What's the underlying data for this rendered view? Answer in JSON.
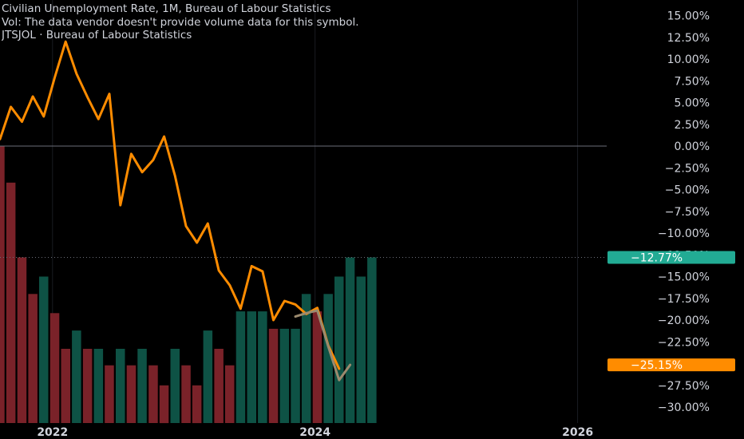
{
  "legend": {
    "line1": "Civilian Unemployment Rate, 1M, Bureau of Labour Statistics",
    "line2": "Vol: The data vendor doesn't provide volume data for this symbol.",
    "line3": "JTSJOL · Bureau of Labour Statistics"
  },
  "badges": {
    "volume_last": "−12.77%",
    "line_last": "−25.15%"
  },
  "colors": {
    "background": "#000000",
    "line": "#ff8c00",
    "line_faded": "#9b8a6e",
    "bar_up": "#0e5245",
    "bar_down": "#7a2229",
    "badge_volume": "#22ab94",
    "badge_line": "#ff8c00",
    "text": "#d1d4dc"
  },
  "chart_data": {
    "type": "line",
    "ylim": [
      -31,
      16
    ],
    "y_tick_labels": [
      "15.00%",
      "12.50%",
      "10.00%",
      "7.50%",
      "5.00%",
      "2.50%",
      "0.00%",
      "−2.50%",
      "−5.00%",
      "−7.50%",
      "−10.00%",
      "−12.50%",
      "−15.00%",
      "−17.50%",
      "−20.00%",
      "−22.50%",
      "−25.00%",
      "−27.50%",
      "−30.00%"
    ],
    "y_tick_values": [
      15,
      12.5,
      10,
      7.5,
      5,
      2.5,
      0,
      -2.5,
      -5,
      -7.5,
      -10,
      -12.5,
      -15,
      -17.5,
      -20,
      -22.5,
      -25,
      -27.5,
      -30
    ],
    "x_tick_labels": [
      "2022",
      "2024",
      "2026"
    ],
    "x_tick_values": [
      2022.0,
      2024.0,
      2026.0
    ],
    "xlim": [
      2021.6,
      2026.1
    ],
    "series": [
      {
        "kind": "line",
        "x": [
          2021.6,
          2021.683,
          2021.767,
          2021.85,
          2021.933,
          2022.017,
          2022.1,
          2022.183,
          2022.267,
          2022.35,
          2022.433,
          2022.517,
          2022.6,
          2022.683,
          2022.767,
          2022.85,
          2022.933,
          2023.017,
          2023.1,
          2023.183,
          2023.267,
          2023.35,
          2023.433,
          2023.517,
          2023.6,
          2023.683,
          2023.767,
          2023.85,
          2023.933,
          2024.017,
          2024.1,
          2024.183
        ],
        "values": [
          0.8,
          4.5,
          2.8,
          5.7,
          3.4,
          7.9,
          12.0,
          8.3,
          5.6,
          3.1,
          6.0,
          -6.8,
          -0.9,
          -3.0,
          -1.6,
          1.1,
          -3.4,
          -9.2,
          -11.1,
          -8.9,
          -14.3,
          -16.0,
          -18.7,
          -13.8,
          -14.4,
          -20.0,
          -17.8,
          -18.2,
          -19.3,
          -18.6,
          -22.9,
          -25.6
        ]
      },
      {
        "kind": "line_faded",
        "x": [
          2023.85,
          2023.933,
          2024.017
        ],
        "values": [
          -19.6,
          -19.2,
          -18.9
        ]
      },
      {
        "kind": "line_faded",
        "x": [
          2024.017,
          2024.1,
          2024.183,
          2024.267
        ],
        "values": [
          -18.9,
          -23.0,
          -26.9,
          -25.15
        ]
      },
      {
        "kind": "volume",
        "x": [
          2021.6,
          2021.683,
          2021.767,
          2021.85,
          2021.933,
          2022.017,
          2022.1,
          2022.183,
          2022.267,
          2022.35,
          2022.433,
          2022.517,
          2022.6,
          2022.683,
          2022.767,
          2022.85,
          2022.933,
          2023.017,
          2023.1,
          2023.183,
          2023.267,
          2023.35,
          2023.433,
          2023.517,
          2023.6,
          2023.683,
          2023.767,
          2023.85,
          2023.933,
          2024.017,
          2024.1,
          2024.183,
          2024.267,
          2024.35,
          2024.433
        ],
        "values": [
          0.0,
          -4.2,
          -12.8,
          -17.0,
          -15.0,
          -19.2,
          -23.3,
          -21.2,
          -23.3,
          -23.3,
          -25.2,
          -23.3,
          -25.2,
          -23.3,
          -25.2,
          -27.5,
          -23.3,
          -25.2,
          -27.5,
          -21.2,
          -23.3,
          -25.2,
          -19.0,
          -19.0,
          -19.0,
          -21.0,
          -21.0,
          -21.0,
          -17.0,
          -19.0,
          -17.0,
          -15.0,
          -12.8,
          -15.0,
          -12.8
        ],
        "direction": [
          "down",
          "down",
          "down",
          "down",
          "up",
          "down",
          "down",
          "up",
          "down",
          "up",
          "down",
          "up",
          "down",
          "up",
          "down",
          "down",
          "up",
          "down",
          "down",
          "up",
          "down",
          "down",
          "up",
          "up",
          "up",
          "down",
          "up",
          "up",
          "up",
          "down",
          "up",
          "up",
          "up",
          "up",
          "up"
        ]
      }
    ]
  }
}
